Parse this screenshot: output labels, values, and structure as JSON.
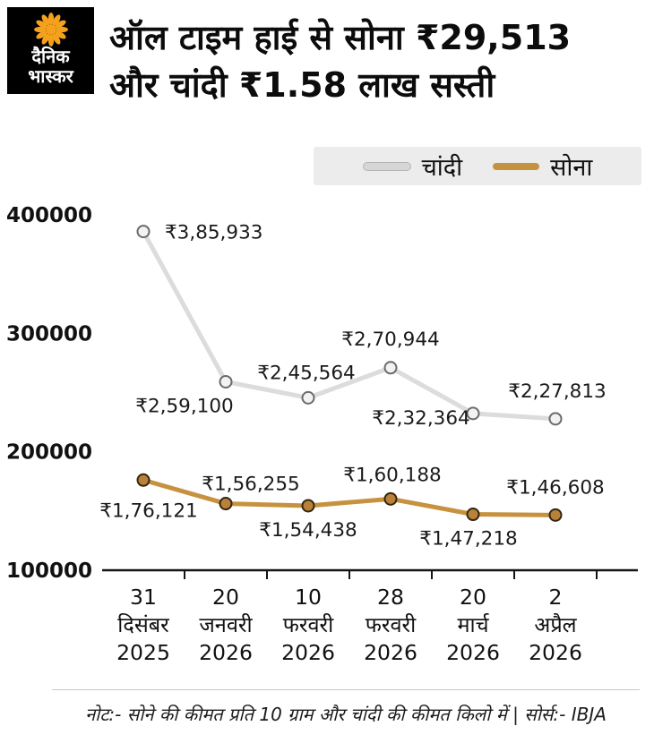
{
  "brand": {
    "name_line1": "दैनिक",
    "name_line2": "भास्कर"
  },
  "header": {
    "title_line1": "ऑल टाइम हाई से सोना ₹29,513",
    "title_line2": "और चांदी ₹1.58 लाख सस्ती"
  },
  "footer": {
    "note": "नोट:- सोने की कीमत प्रति 10 ग्राम और चांदी की कीमत किलो में | सोर्स:- IBJA"
  },
  "colors": {
    "gold": "#c7923f",
    "silver": "#dcdcdc",
    "legend_bg": "#ececec",
    "axis": "#141414",
    "sun": "#f6a11c"
  },
  "chart_data": {
    "type": "line",
    "title": "ऑल टाइम हाई से सोना ₹29,513 और चांदी ₹1.58 लाख सस्ती",
    "xlabel": "",
    "ylabel": "",
    "grid": false,
    "legend_position": "top-right",
    "ylim": [
      100000,
      400000
    ],
    "yticks": [
      400000,
      300000,
      200000,
      100000
    ],
    "categories": [
      [
        "31",
        "दिसंबर",
        "2025"
      ],
      [
        "20",
        "जनवरी",
        "2026"
      ],
      [
        "10",
        "फरवरी",
        "2026"
      ],
      [
        "28",
        "फरवरी",
        "2026"
      ],
      [
        "20",
        "मार्च",
        "2026"
      ],
      [
        "2",
        "अप्रैल",
        "2026"
      ]
    ],
    "series": [
      {
        "key": "silver",
        "name": "चांदी",
        "color": "#dcdcdc",
        "marker_fill": "#f2f2f2",
        "marker_stroke": "#6b6b6b",
        "values": [
          385933,
          259100,
          245564,
          270944,
          232364,
          227813
        ],
        "labels": [
          "₹3,85,933",
          "₹2,59,100",
          "₹2,45,564",
          "₹2,70,944",
          "₹2,32,364",
          "₹2,27,813"
        ],
        "label_offsets": [
          {
            "dx": 24,
            "dy": 8,
            "anchor": "start"
          },
          {
            "dx": -46,
            "dy": 34,
            "anchor": "middle"
          },
          {
            "dx": -2,
            "dy": -21,
            "anchor": "middle"
          },
          {
            "dx": 0,
            "dy": -25,
            "anchor": "middle"
          },
          {
            "dx": -58,
            "dy": 12,
            "anchor": "middle"
          },
          {
            "dx": 2,
            "dy": -24,
            "anchor": "middle"
          }
        ]
      },
      {
        "key": "gold",
        "name": "सोना",
        "color": "#c7923f",
        "marker_fill": "#b9813a",
        "marker_stroke": "#33270f",
        "values": [
          176121,
          156255,
          154438,
          160188,
          147218,
          146608
        ],
        "labels": [
          "₹1,76,121",
          "₹1,56,255",
          "₹1,54,438",
          "₹1,60,188",
          "₹1,47,218",
          "₹1,46,608"
        ],
        "label_offsets": [
          {
            "dx": 6,
            "dy": 41,
            "anchor": "middle"
          },
          {
            "dx": 28,
            "dy": -15,
            "anchor": "middle"
          },
          {
            "dx": 0,
            "dy": 34,
            "anchor": "middle"
          },
          {
            "dx": 2,
            "dy": -20,
            "anchor": "middle"
          },
          {
            "dx": -5,
            "dy": 34,
            "anchor": "middle"
          },
          {
            "dx": 0,
            "dy": -24,
            "anchor": "middle"
          }
        ]
      }
    ]
  }
}
